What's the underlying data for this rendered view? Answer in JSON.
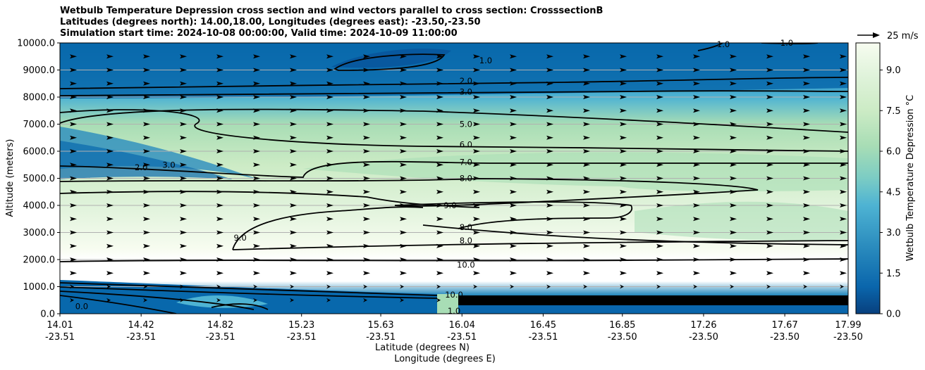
{
  "chart_data": {
    "type": "contour",
    "title_lines": [
      "Wetbulb Temperature Depression cross section and wind vectors parallel to cross section: CrosssectionB",
      "Latitudes (degrees north): 14.00,18.00, Longitudes (degrees east): -23.50,-23.50",
      "Simulation start time: 2024-10-08 00:00:00, Valid time: 2024-10-09 11:00:00"
    ],
    "ylabel": "Altitude (meters)",
    "xlabel_lat": "Latitude (degrees N)",
    "xlabel_lon": "Longitude (degrees E)",
    "ylim": [
      0,
      10000
    ],
    "yticks": [
      "0.0",
      "1000.0",
      "2000.0",
      "3000.0",
      "4000.0",
      "5000.0",
      "6000.0",
      "7000.0",
      "8000.0",
      "9000.0",
      "10000.0"
    ],
    "ytick_values": [
      0,
      1000,
      2000,
      3000,
      4000,
      5000,
      6000,
      7000,
      8000,
      9000,
      10000
    ],
    "xlim": [
      14.01,
      17.99
    ],
    "xticks_lat": [
      "14.01",
      "14.42",
      "14.82",
      "15.23",
      "15.63",
      "16.04",
      "16.45",
      "16.85",
      "17.26",
      "17.67",
      "17.99"
    ],
    "xticks_lon": [
      "-23.51",
      "-23.51",
      "-23.51",
      "-23.51",
      "-23.51",
      "-23.51",
      "-23.51",
      "-23.50",
      "-23.50",
      "-23.50",
      "-23.50"
    ],
    "xtick_values": [
      14.01,
      14.42,
      14.82,
      15.23,
      15.63,
      16.04,
      16.45,
      16.85,
      17.26,
      17.67,
      17.99
    ],
    "colorbar": {
      "label": "Wetbulb Temperature Depression °C",
      "ticks": [
        "0.0",
        "1.5",
        "3.0",
        "4.5",
        "6.0",
        "7.5",
        "9.0"
      ],
      "tick_values": [
        0,
        1.5,
        3.0,
        4.5,
        6.0,
        7.5,
        9.0
      ],
      "range": [
        0,
        10
      ]
    },
    "quiver_key": "25 m/s",
    "contour_labels": [
      {
        "text": "2.0",
        "x": 16.06,
        "y": 8600
      },
      {
        "text": "3.0",
        "x": 16.06,
        "y": 8200
      },
      {
        "text": "5.0",
        "x": 16.06,
        "y": 7000
      },
      {
        "text": "6.0",
        "x": 16.06,
        "y": 6250
      },
      {
        "text": "7.0",
        "x": 16.06,
        "y": 5600
      },
      {
        "text": "8.0",
        "x": 16.06,
        "y": 5000
      },
      {
        "text": "8.0",
        "x": 16.06,
        "y": 3200
      },
      {
        "text": "8.0",
        "x": 16.06,
        "y": 2700
      },
      {
        "text": "10.0",
        "x": 16.06,
        "y": 1800
      },
      {
        "text": "9.0",
        "x": 15.98,
        "y": 4000
      },
      {
        "text": "9.0",
        "x": 14.92,
        "y": 2800
      },
      {
        "text": "1.0",
        "x": 16.16,
        "y": 9350
      },
      {
        "text": "1.0",
        "x": 17.36,
        "y": 9950
      },
      {
        "text": "1.0",
        "x": 17.68,
        "y": 10000
      },
      {
        "text": "2.0",
        "x": 14.42,
        "y": 5400
      },
      {
        "text": "3.0",
        "x": 14.56,
        "y": 5500
      },
      {
        "text": "10.0",
        "x": 16.0,
        "y": 700
      },
      {
        "text": "0.0",
        "x": 14.12,
        "y": 270
      },
      {
        "text": "1.0",
        "x": 16.0,
        "y": 100
      }
    ]
  }
}
